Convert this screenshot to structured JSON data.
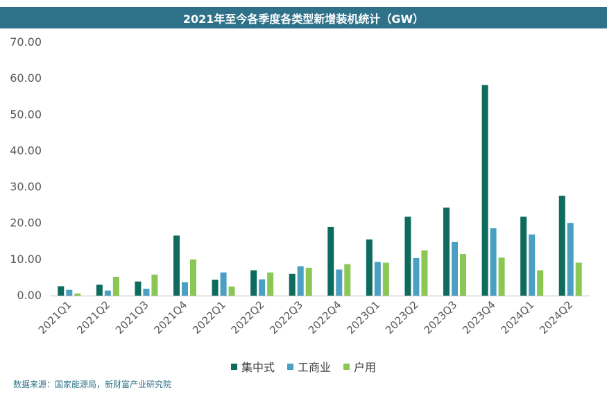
{
  "title": "2021年至今各季度各类型新增装机统计（GW）",
  "source": "数据来源：国家能源局，新财富产业研究院",
  "chart_data": {
    "type": "bar",
    "title": "2021年至今各季度各类型新增装机统计（GW）",
    "xlabel": "",
    "ylabel": "",
    "ylim": [
      0,
      70
    ],
    "yticks": [
      "0.00",
      "10.00",
      "20.00",
      "30.00",
      "40.00",
      "50.00",
      "60.00",
      "70.00"
    ],
    "grid": false,
    "legend_position": "bottom",
    "categories": [
      "2021Q1",
      "2021Q2",
      "2021Q3",
      "2021Q4",
      "2022Q1",
      "2022Q2",
      "2022Q3",
      "2022Q4",
      "2023Q1",
      "2023Q2",
      "2023Q3",
      "2023Q4",
      "2024Q1",
      "2024Q2"
    ],
    "series": [
      {
        "name": "集中式",
        "color": "#0e6b5d",
        "values": [
          2.6,
          3.0,
          3.9,
          16.6,
          4.4,
          7.0,
          6.0,
          19.0,
          15.5,
          21.8,
          24.3,
          58.2,
          21.8,
          27.6
        ]
      },
      {
        "name": "工商业",
        "color": "#4a9fc3",
        "values": [
          1.6,
          1.4,
          1.9,
          3.7,
          6.4,
          4.5,
          8.1,
          7.2,
          9.3,
          10.4,
          14.8,
          18.6,
          16.9,
          20.1
        ]
      },
      {
        "name": "户用",
        "color": "#8bc753",
        "values": [
          0.6,
          5.2,
          5.8,
          10.0,
          2.5,
          6.4,
          7.7,
          8.7,
          9.1,
          12.5,
          11.5,
          10.5,
          7.0,
          9.1
        ]
      }
    ]
  }
}
